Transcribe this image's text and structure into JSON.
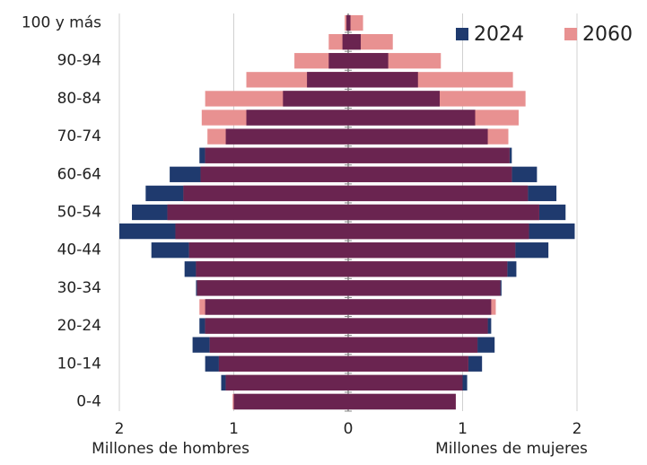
{
  "chart_data": {
    "type": "pyramid",
    "categories": [
      "0-4",
      null,
      "10-14",
      null,
      "20-24",
      null,
      "30-34",
      null,
      "40-44",
      null,
      "50-54",
      null,
      "60-64",
      null,
      "70-74",
      null,
      "80-84",
      null,
      "90-94",
      null,
      "100 y más"
    ],
    "series": [
      {
        "name": "2024",
        "color": "#1f3a6e",
        "men": [
          -1.0,
          -1.11,
          -1.25,
          -1.36,
          -1.3,
          -1.25,
          -1.33,
          -1.43,
          -1.72,
          -2.0,
          -1.89,
          -1.77,
          -1.56,
          -1.3,
          -1.07,
          -0.89,
          -0.57,
          -0.36,
          -0.17,
          -0.05,
          -0.015
        ],
        "women": [
          0.94,
          1.04,
          1.17,
          1.28,
          1.25,
          1.25,
          1.34,
          1.47,
          1.75,
          1.98,
          1.9,
          1.82,
          1.65,
          1.43,
          1.22,
          1.11,
          0.8,
          0.61,
          0.35,
          0.11,
          0.02
        ]
      },
      {
        "name": "2060",
        "color": "#e89191",
        "men": [
          -1.01,
          -1.07,
          -1.13,
          -1.21,
          -1.25,
          -1.3,
          -1.32,
          -1.33,
          -1.39,
          -1.51,
          -1.58,
          -1.44,
          -1.29,
          -1.25,
          -1.23,
          -1.28,
          -1.25,
          -0.89,
          -0.47,
          -0.17,
          -0.03
        ],
        "women": [
          0.94,
          1.0,
          1.05,
          1.13,
          1.22,
          1.29,
          1.33,
          1.39,
          1.46,
          1.58,
          1.67,
          1.57,
          1.43,
          1.41,
          1.4,
          1.49,
          1.55,
          1.44,
          0.81,
          0.39,
          0.13
        ]
      }
    ],
    "xlim": [
      -2.1,
      2.1
    ],
    "xticks": [
      {
        "value": -2,
        "label": "2"
      },
      {
        "value": -1,
        "label": "1"
      },
      0,
      1,
      2
    ],
    "xlabel_left": "Millones de hombres",
    "xlabel_right": "Millones de mujeres",
    "grid": true,
    "legend": "upper right"
  }
}
